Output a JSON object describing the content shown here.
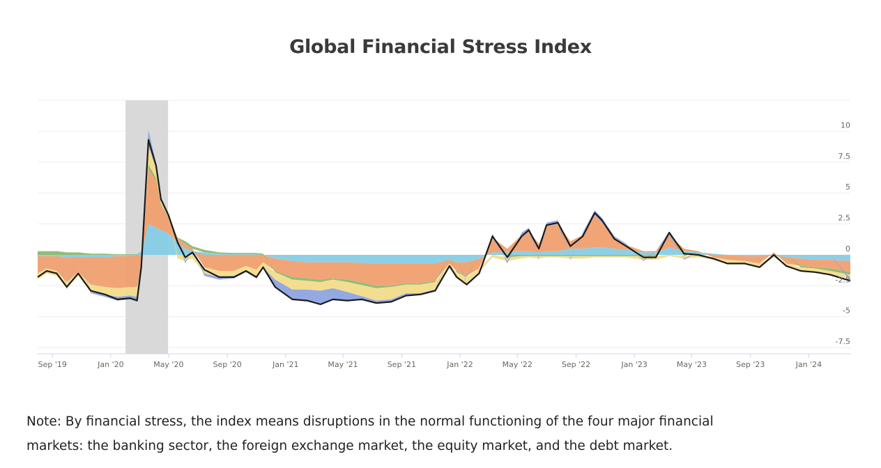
{
  "chart_data": {
    "type": "area",
    "title": "Global Financial Stress Index",
    "xlabel": "",
    "ylabel": "",
    "ylim": [
      -8,
      12.5
    ],
    "xlim": [
      "2019-08-01",
      "2024-03-28"
    ],
    "grid": true,
    "legend": "none",
    "y_ticks": [
      "10",
      "7.5",
      "5",
      "2.5",
      "0",
      "-2.5",
      "-5",
      "-7.5"
    ],
    "y_tick_values": [
      10,
      7.5,
      5,
      2.5,
      0,
      -2.5,
      -5,
      -7.5
    ],
    "x_ticks": [
      "Sep '19",
      "Jan '20",
      "May '20",
      "Sep '20",
      "Jan '21",
      "May '21",
      "Sep '21",
      "Jan '22",
      "May '22",
      "Sep '22",
      "Jan '23",
      "May '23",
      "Sep '23",
      "Jan '24"
    ],
    "x_tick_dates": [
      "2019-09-01",
      "2020-01-01",
      "2020-05-01",
      "2020-09-01",
      "2021-01-01",
      "2021-05-01",
      "2021-09-01",
      "2022-01-01",
      "2022-05-01",
      "2022-09-01",
      "2023-01-01",
      "2023-05-01",
      "2023-09-01",
      "2024-01-01"
    ],
    "shaded_period": [
      "2020-02-01",
      "2020-04-30"
    ],
    "colors": {
      "index": "#1a1a1a",
      "c1": "#86cde6",
      "c2": "#f0a070",
      "c3": "#8db870",
      "c4": "#f2dc8a",
      "c5": "#8ea4e0",
      "shade": "#d9d9d9"
    },
    "series_keys": [
      "index",
      "c1",
      "c2",
      "c3",
      "c4",
      "c5"
    ],
    "rows": [
      [
        "2019-08-01",
        -1.8,
        -0.1,
        -1.4,
        0.3,
        -0.5,
        0.0
      ],
      [
        "2019-08-20",
        -1.3,
        -0.1,
        -1.0,
        0.3,
        -0.4,
        0
      ],
      [
        "2019-09-10",
        -1.5,
        -0.1,
        -1.2,
        0.3,
        -0.4,
        0
      ],
      [
        "2019-10-01",
        -2.6,
        -0.2,
        -2.0,
        0.2,
        -0.5,
        -0.1
      ],
      [
        "2019-10-25",
        -1.5,
        -0.2,
        -1.2,
        0.2,
        -0.3,
        0
      ],
      [
        "2019-11-20",
        -2.9,
        -0.2,
        -2.2,
        0.1,
        -0.6,
        -0.1
      ],
      [
        "2019-12-20",
        -3.2,
        -0.2,
        -2.4,
        0.1,
        -0.6,
        -0.2
      ],
      [
        "2020-01-15",
        -3.6,
        -0.1,
        -2.6,
        0.05,
        -0.7,
        -0.3
      ],
      [
        "2020-02-10",
        -3.5,
        -0.1,
        -2.5,
        0.05,
        -0.7,
        -0.3
      ],
      [
        "2020-02-25",
        -3.7,
        0,
        -2.6,
        0.05,
        -0.8,
        -0.3
      ],
      [
        "2020-03-05",
        -1.0,
        0.3,
        -1.0,
        0,
        -0.3,
        0
      ],
      [
        "2020-03-20",
        9.3,
        2.5,
        4.5,
        0.3,
        1.5,
        1.3
      ],
      [
        "2020-04-05",
        7.2,
        2.2,
        3.8,
        0.2,
        0.8,
        0.4
      ],
      [
        "2020-04-15",
        4.5,
        2.0,
        2.0,
        0.1,
        0.3,
        0.2
      ],
      [
        "2020-05-01",
        3.2,
        1.7,
        1.3,
        0.05,
        0.1,
        0.1
      ],
      [
        "2020-05-20",
        1.0,
        1.0,
        0.3,
        0.1,
        -0.3,
        0
      ],
      [
        "2020-06-05",
        -0.2,
        0.5,
        0.4,
        0.2,
        -0.5,
        -0.2
      ],
      [
        "2020-06-20",
        0.2,
        0.3,
        0.2,
        0.2,
        -0.3,
        0
      ],
      [
        "2020-07-15",
        -1.2,
        0.2,
        -1.0,
        0.2,
        -0.5,
        -0.2
      ],
      [
        "2020-08-15",
        -1.8,
        0.1,
        -1.3,
        0.1,
        -0.5,
        -0.2
      ],
      [
        "2020-09-15",
        -1.8,
        0.05,
        -1.3,
        0.1,
        -0.4,
        -0.2
      ],
      [
        "2020-10-10",
        -1.3,
        0.05,
        -0.9,
        0.1,
        -0.4,
        -0.1
      ],
      [
        "2020-11-01",
        -1.8,
        0.05,
        -1.2,
        0.1,
        -0.5,
        -0.2
      ],
      [
        "2020-11-15",
        -1.0,
        0,
        -0.6,
        0.1,
        -0.4,
        -0.1
      ],
      [
        "2020-12-10",
        -2.6,
        -0.3,
        -1.0,
        -0.1,
        -0.6,
        -0.6
      ],
      [
        "2021-01-15",
        -3.6,
        -0.5,
        -1.3,
        -0.2,
        -0.8,
        -0.8
      ],
      [
        "2021-02-15",
        -3.7,
        -0.6,
        -1.3,
        -0.2,
        -0.7,
        -0.9
      ],
      [
        "2021-03-15",
        -4.0,
        -0.6,
        -1.4,
        -0.2,
        -0.7,
        -1.1
      ],
      [
        "2021-04-10",
        -3.6,
        -0.6,
        -1.3,
        -0.1,
        -0.7,
        -0.9
      ],
      [
        "2021-05-10",
        -3.7,
        -0.6,
        -1.4,
        -0.2,
        -0.8,
        -0.7
      ],
      [
        "2021-06-10",
        -3.6,
        -0.65,
        -1.6,
        -0.2,
        -0.9,
        -0.3
      ],
      [
        "2021-07-10",
        -3.9,
        -0.7,
        -1.8,
        -0.2,
        -1.0,
        -0.2
      ],
      [
        "2021-08-10",
        -3.8,
        -0.7,
        -1.8,
        -0.1,
        -1.0,
        -0.2
      ],
      [
        "2021-09-10",
        -3.3,
        -0.7,
        -1.6,
        -0.1,
        -0.7,
        -0.2
      ],
      [
        "2021-10-10",
        -3.2,
        -0.7,
        -1.6,
        -0.1,
        -0.7,
        -0.1
      ],
      [
        "2021-11-10",
        -2.9,
        -0.7,
        -1.4,
        -0.1,
        -0.6,
        -0.1
      ],
      [
        "2021-12-10",
        -0.9,
        -0.4,
        -0.3,
        0,
        -0.2,
        0
      ],
      [
        "2021-12-25",
        -1.8,
        -0.6,
        -0.7,
        -0.1,
        -0.4,
        0
      ],
      [
        "2022-01-15",
        -2.4,
        -0.6,
        -1.1,
        -0.1,
        -0.5,
        -0.1
      ],
      [
        "2022-02-10",
        -1.5,
        -0.3,
        -0.8,
        0,
        -0.3,
        -0.1
      ],
      [
        "2022-03-10",
        1.5,
        0.2,
        1.2,
        0,
        -0.2,
        0.3
      ],
      [
        "2022-04-10",
        -0.2,
        0.2,
        0.3,
        -0.2,
        -0.3,
        -0.2
      ],
      [
        "2022-05-10",
        1.5,
        0.3,
        1.3,
        -0.1,
        -0.2,
        0.2
      ],
      [
        "2022-05-25",
        2.0,
        0.3,
        1.6,
        -0.1,
        -0.1,
        0.3
      ],
      [
        "2022-06-15",
        0.5,
        0.2,
        0.7,
        -0.1,
        -0.2,
        -0.1
      ],
      [
        "2022-07-01",
        2.4,
        0.3,
        2.0,
        -0.1,
        -0.1,
        0.3
      ],
      [
        "2022-07-25",
        2.6,
        0.3,
        2.2,
        -0.1,
        -0.1,
        0.3
      ],
      [
        "2022-08-20",
        0.7,
        0.5,
        0.6,
        -0.1,
        -0.2,
        -0.1
      ],
      [
        "2022-09-15",
        1.5,
        0.5,
        1.1,
        -0.1,
        -0.2,
        0.2
      ],
      [
        "2022-10-10",
        3.4,
        0.6,
        2.6,
        -0.1,
        -0.1,
        0.4
      ],
      [
        "2022-10-25",
        2.8,
        0.6,
        2.0,
        -0.1,
        -0.1,
        0.4
      ],
      [
        "2022-11-20",
        1.3,
        0.5,
        0.9,
        -0.1,
        -0.1,
        0.1
      ],
      [
        "2022-12-15",
        0.7,
        0.4,
        0.4,
        -0.1,
        -0.1,
        0.1
      ],
      [
        "2023-01-20",
        -0.2,
        0.2,
        0.1,
        -0.1,
        -0.3,
        -0.1
      ],
      [
        "2023-02-15",
        -0.2,
        0.2,
        0.1,
        -0.1,
        -0.3,
        0
      ],
      [
        "2023-03-15",
        1.8,
        0.6,
        1.0,
        0,
        -0.1,
        0.3
      ],
      [
        "2023-04-15",
        0.1,
        0.3,
        0.2,
        -0.1,
        -0.2,
        -0.1
      ],
      [
        "2023-05-15",
        0.0,
        0.2,
        0.1,
        0,
        -0.2,
        0
      ],
      [
        "2023-06-15",
        -0.3,
        0.1,
        -0.2,
        0,
        -0.2,
        0
      ],
      [
        "2023-07-15",
        -0.7,
        0,
        -0.4,
        0,
        -0.3,
        0
      ],
      [
        "2023-08-20",
        -0.7,
        -0.1,
        -0.4,
        0,
        -0.2,
        0
      ],
      [
        "2023-09-20",
        -1.0,
        -0.1,
        -0.6,
        0,
        -0.3,
        0
      ],
      [
        "2023-10-20",
        0.0,
        -0.1,
        0.2,
        0,
        -0.1,
        0
      ],
      [
        "2023-11-15",
        -0.9,
        -0.2,
        -0.5,
        0,
        -0.2,
        0
      ],
      [
        "2023-12-15",
        -1.3,
        -0.3,
        -0.6,
        -0.1,
        -0.3,
        0
      ],
      [
        "2024-01-15",
        -1.4,
        -0.4,
        -0.6,
        -0.1,
        -0.3,
        0
      ],
      [
        "2024-02-15",
        -1.6,
        -0.4,
        -0.7,
        -0.2,
        -0.3,
        0
      ],
      [
        "2024-03-28",
        -2.1,
        -0.5,
        -0.9,
        -0.2,
        -0.3,
        -0.2
      ]
    ]
  },
  "note": {
    "line1": "Note: By financial stress, the index means disruptions in the normal functioning of the four major financial",
    "line2": "markets: the banking sector, the foreign exchange market, the equity market, and the debt market."
  }
}
